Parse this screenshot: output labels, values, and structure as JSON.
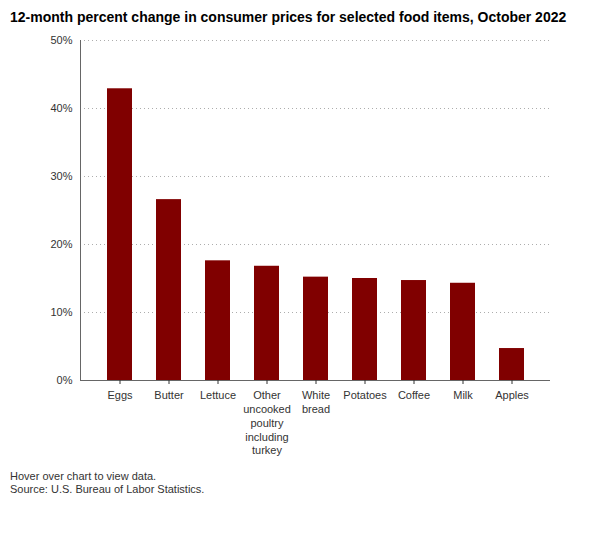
{
  "chart_data": {
    "type": "bar",
    "title": "12-month percent change in consumer prices for selected food items, October 2022",
    "categories": [
      "Eggs",
      "Butter",
      "Lettuce",
      "Other uncooked poultry including turkey",
      "White bread",
      "Potatoes",
      "Coffee",
      "Milk",
      "Apples"
    ],
    "values": [
      42.9,
      26.6,
      17.6,
      16.8,
      15.2,
      15.0,
      14.7,
      14.3,
      4.7
    ],
    "color": "#800000",
    "ylim": [
      0,
      50
    ],
    "yticks": [
      {
        "value": 0,
        "label": "0%"
      },
      {
        "value": 10,
        "label": "10%"
      },
      {
        "value": 20,
        "label": "20%"
      },
      {
        "value": 30,
        "label": "30%"
      },
      {
        "value": 40,
        "label": "40%"
      },
      {
        "value": 50,
        "label": "50%"
      }
    ],
    "grid": true,
    "annotations": [
      "Hover over chart to view data.",
      "Source: U.S. Bureau of Labor Statistics."
    ]
  }
}
